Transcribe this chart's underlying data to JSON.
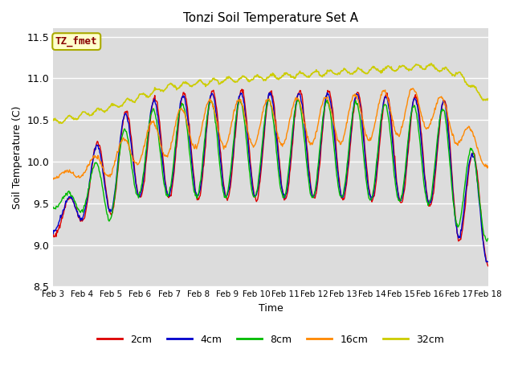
{
  "title": "Tonzi Soil Temperature Set A",
  "xlabel": "Time",
  "ylabel": "Soil Temperature (C)",
  "annotation_text": "TZ_fmet",
  "annotation_bg": "#ffffcc",
  "annotation_border": "#aaaa00",
  "annotation_color": "#880000",
  "ylim": [
    8.5,
    11.6
  ],
  "fig_bg": "#ffffff",
  "plot_bg": "#dcdcdc",
  "line_colors": {
    "2cm": "#dd0000",
    "4cm": "#0000cc",
    "8cm": "#00bb00",
    "16cm": "#ff8800",
    "32cm": "#cccc00"
  },
  "tick_labels": [
    "Feb 3",
    "Feb 4",
    "Feb 5",
    "Feb 6",
    "Feb 7",
    "Feb 8",
    "Feb 9",
    "Feb 10",
    "Feb 11",
    "Feb 12",
    "Feb 13",
    "Feb 14",
    "Feb 15",
    "Feb 16",
    "Feb 17",
    "Feb 18"
  ],
  "n_points": 720,
  "days": 15,
  "figsize": [
    6.4,
    4.8
  ],
  "dpi": 100
}
